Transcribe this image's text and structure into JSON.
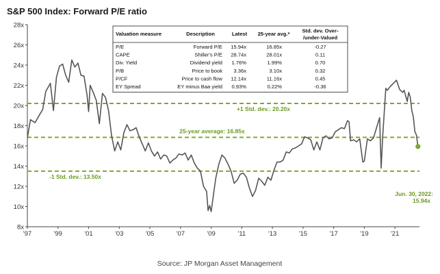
{
  "chart_data": {
    "type": "line",
    "title": "S&P 500 Index: Forward P/E ratio",
    "source": "Source: JP Morgan Asset Management",
    "ylim": [
      8,
      28
    ],
    "xlim": [
      1997,
      2022.6
    ],
    "y_tick_labels": [
      "8x",
      "10x",
      "12x",
      "14x",
      "16x",
      "18x",
      "20x",
      "22x",
      "24x",
      "26x",
      "28x"
    ],
    "y_ticks": [
      8,
      10,
      12,
      14,
      16,
      18,
      20,
      22,
      24,
      26,
      28
    ],
    "x_ticks": [
      1997,
      1999,
      2001,
      2003,
      2005,
      2007,
      2009,
      2011,
      2013,
      2015,
      2017,
      2019,
      2021
    ],
    "x_tick_labels": [
      "'97",
      "'99",
      "'01",
      "'03",
      "'05",
      "'07",
      "'09",
      "'11",
      "'13",
      "'15",
      "'17",
      "'19",
      "'21"
    ],
    "grid": false,
    "reference_lines": [
      {
        "value": 20.2,
        "label": "+1 Std. dev.: 20.20x"
      },
      {
        "value": 16.85,
        "label": "25-year average: 16.85x"
      },
      {
        "value": 13.5,
        "label": "-1 Std. dev.: 13.50x"
      }
    ],
    "end_point": {
      "x": 2022.5,
      "y": 15.94,
      "label_line1": "Jun. 30, 2022:",
      "label_line2": "15.94x"
    },
    "series": [
      {
        "name": "",
        "color": "#555555",
        "points": [
          [
            1997.0,
            16.8
          ],
          [
            1997.2,
            18.6
          ],
          [
            1997.5,
            18.3
          ],
          [
            1997.8,
            19.1
          ],
          [
            1998.0,
            19.6
          ],
          [
            1998.2,
            21.4
          ],
          [
            1998.5,
            22.2
          ],
          [
            1998.7,
            19.5
          ],
          [
            1998.9,
            22.8
          ],
          [
            1999.1,
            23.9
          ],
          [
            1999.3,
            24.1
          ],
          [
            1999.5,
            23.0
          ],
          [
            1999.7,
            22.3
          ],
          [
            1999.9,
            24.5
          ],
          [
            2000.1,
            23.8
          ],
          [
            2000.3,
            24.2
          ],
          [
            2000.5,
            23.0
          ],
          [
            2000.7,
            22.9
          ],
          [
            2000.9,
            21.0
          ],
          [
            2001.0,
            19.4
          ],
          [
            2001.1,
            22.0
          ],
          [
            2001.3,
            21.3
          ],
          [
            2001.5,
            20.5
          ],
          [
            2001.7,
            18.2
          ],
          [
            2001.9,
            21.2
          ],
          [
            2002.1,
            20.8
          ],
          [
            2002.3,
            19.5
          ],
          [
            2002.5,
            17.0
          ],
          [
            2002.7,
            15.5
          ],
          [
            2002.9,
            16.4
          ],
          [
            2003.1,
            15.6
          ],
          [
            2003.3,
            17.3
          ],
          [
            2003.5,
            18.1
          ],
          [
            2003.7,
            17.5
          ],
          [
            2003.9,
            17.6
          ],
          [
            2004.1,
            17.8
          ],
          [
            2004.3,
            16.9
          ],
          [
            2004.5,
            16.2
          ],
          [
            2004.7,
            15.5
          ],
          [
            2004.9,
            16.3
          ],
          [
            2005.1,
            15.5
          ],
          [
            2005.3,
            15.0
          ],
          [
            2005.5,
            15.4
          ],
          [
            2005.7,
            14.7
          ],
          [
            2005.9,
            15.1
          ],
          [
            2006.1,
            15.0
          ],
          [
            2006.3,
            14.3
          ],
          [
            2006.5,
            14.6
          ],
          [
            2006.7,
            14.8
          ],
          [
            2006.9,
            15.2
          ],
          [
            2007.1,
            15.1
          ],
          [
            2007.3,
            15.3
          ],
          [
            2007.5,
            14.6
          ],
          [
            2007.7,
            15.1
          ],
          [
            2007.9,
            14.3
          ],
          [
            2008.1,
            13.8
          ],
          [
            2008.3,
            13.5
          ],
          [
            2008.5,
            12.0
          ],
          [
            2008.7,
            11.5
          ],
          [
            2008.8,
            9.6
          ],
          [
            2008.9,
            10.1
          ],
          [
            2009.0,
            9.5
          ],
          [
            2009.1,
            10.6
          ],
          [
            2009.3,
            12.8
          ],
          [
            2009.5,
            14.2
          ],
          [
            2009.7,
            15.1
          ],
          [
            2009.9,
            14.8
          ],
          [
            2010.1,
            14.2
          ],
          [
            2010.3,
            13.5
          ],
          [
            2010.5,
            12.3
          ],
          [
            2010.7,
            12.6
          ],
          [
            2010.9,
            13.2
          ],
          [
            2011.1,
            13.3
          ],
          [
            2011.3,
            12.9
          ],
          [
            2011.5,
            11.8
          ],
          [
            2011.7,
            11.0
          ],
          [
            2011.9,
            11.6
          ],
          [
            2012.1,
            12.8
          ],
          [
            2012.3,
            12.5
          ],
          [
            2012.5,
            12.1
          ],
          [
            2012.7,
            12.9
          ],
          [
            2012.9,
            12.6
          ],
          [
            2013.1,
            13.6
          ],
          [
            2013.3,
            14.4
          ],
          [
            2013.5,
            14.4
          ],
          [
            2013.7,
            14.6
          ],
          [
            2013.9,
            15.4
          ],
          [
            2014.1,
            15.3
          ],
          [
            2014.3,
            15.7
          ],
          [
            2014.5,
            15.8
          ],
          [
            2014.7,
            16.0
          ],
          [
            2014.9,
            16.2
          ],
          [
            2015.1,
            16.9
          ],
          [
            2015.3,
            16.8
          ],
          [
            2015.5,
            16.6
          ],
          [
            2015.7,
            15.6
          ],
          [
            2015.9,
            16.4
          ],
          [
            2016.1,
            15.6
          ],
          [
            2016.3,
            16.8
          ],
          [
            2016.5,
            17.0
          ],
          [
            2016.7,
            16.7
          ],
          [
            2016.9,
            16.8
          ],
          [
            2017.1,
            17.4
          ],
          [
            2017.3,
            17.6
          ],
          [
            2017.5,
            17.8
          ],
          [
            2017.7,
            17.7
          ],
          [
            2017.9,
            18.5
          ],
          [
            2018.0,
            18.4
          ],
          [
            2018.1,
            16.5
          ],
          [
            2018.3,
            16.6
          ],
          [
            2018.5,
            16.4
          ],
          [
            2018.7,
            16.7
          ],
          [
            2018.9,
            14.4
          ],
          [
            2019.0,
            14.5
          ],
          [
            2019.2,
            16.7
          ],
          [
            2019.4,
            16.5
          ],
          [
            2019.6,
            16.8
          ],
          [
            2019.8,
            17.8
          ],
          [
            2020.0,
            18.8
          ],
          [
            2020.1,
            13.8
          ],
          [
            2020.2,
            17.0
          ],
          [
            2020.4,
            21.7
          ],
          [
            2020.5,
            21.5
          ],
          [
            2020.7,
            21.9
          ],
          [
            2020.9,
            22.2
          ],
          [
            2021.1,
            22.5
          ],
          [
            2021.3,
            21.6
          ],
          [
            2021.5,
            21.3
          ],
          [
            2021.6,
            21.5
          ],
          [
            2021.8,
            20.4
          ],
          [
            2021.9,
            21.3
          ],
          [
            2022.0,
            20.8
          ],
          [
            2022.1,
            19.5
          ],
          [
            2022.2,
            18.9
          ],
          [
            2022.3,
            17.4
          ],
          [
            2022.4,
            17.1
          ],
          [
            2022.5,
            15.94
          ]
        ]
      }
    ]
  },
  "valuation_table": {
    "headers": [
      "Valuation measure",
      "Description",
      "Latest",
      "25-year avg.*",
      "Std. dev. Over-\n/under-Valued"
    ],
    "rows": [
      [
        "P/E",
        "Forward P/E",
        "15.94x",
        "16.85x",
        "-0.27"
      ],
      [
        "CAPE",
        "Shiller's P/E",
        "28.74x",
        "28.01x",
        "0.11"
      ],
      [
        "Div. Yield",
        "Dividend yield",
        "1.76%",
        "1.99%",
        "0.70"
      ],
      [
        "P/B",
        "Price to book",
        "3.36x",
        "3.10x",
        "0.32"
      ],
      [
        "P/CF",
        "Price to cash flow",
        "12.14x",
        "11.16x",
        "0.45"
      ],
      [
        "EY Spread",
        "EY minus Baa yield",
        "0.93%",
        "0.22%",
        "-0.36"
      ]
    ]
  },
  "colors": {
    "line": "#555555",
    "reference": "#7fa82d",
    "label": "#6a9a1f",
    "axis": "#444444"
  }
}
